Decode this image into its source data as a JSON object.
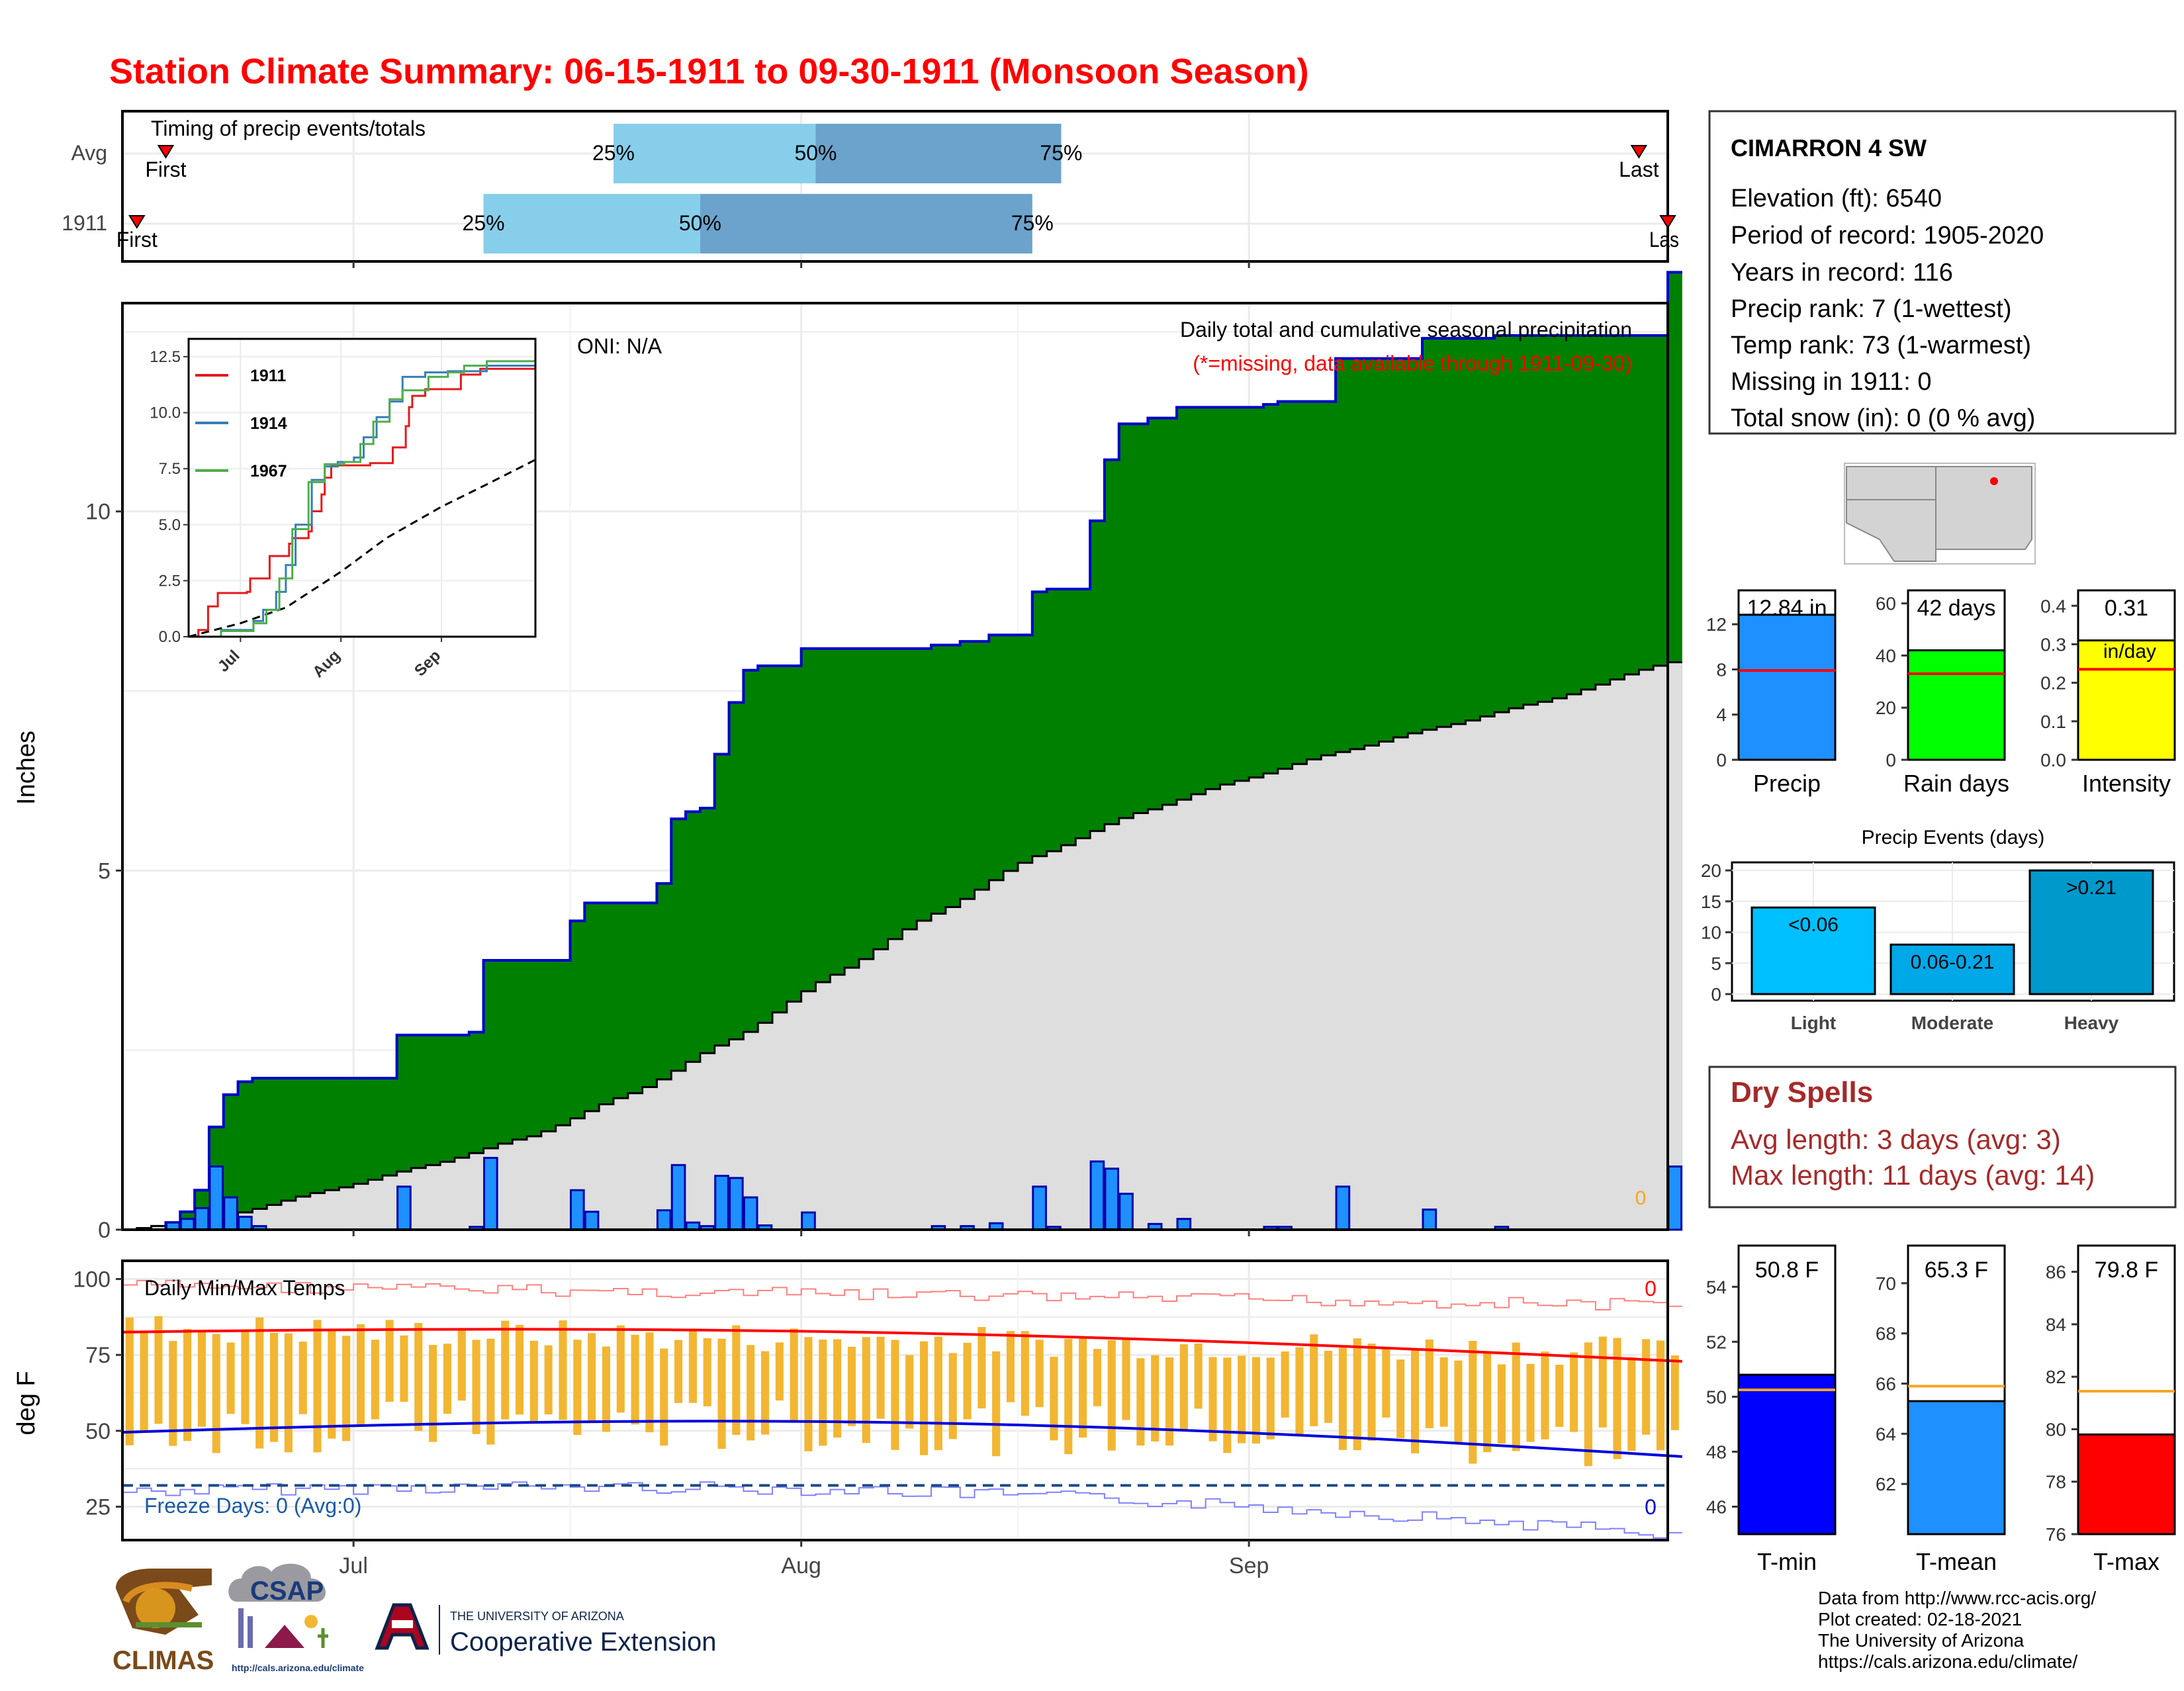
{
  "title": "Station Climate Summary: 06-15-1911 to 09-30-1911 (Monsoon Season)",
  "colors": {
    "title": "#ff0000",
    "green": "#008000",
    "blue": "#1e90ff",
    "gray": "#dedede",
    "navy": "#0000cc",
    "gold": "#f2b632",
    "brown": "#a52a2a"
  },
  "timing": {
    "label": "Timing of precip events/totals",
    "rows": [
      {
        "name": "Avg",
        "first_date": "1911-06-18",
        "p25": "1911-07-19",
        "p50": "1911-08-02",
        "p75": "1911-08-19",
        "last_date": "1911-09-28",
        "first_label": "First",
        "last_label": "Last",
        "p25_label": "25%",
        "p50_label": "50%",
        "p75_label": "75%"
      },
      {
        "name": "1911",
        "first_date": "1911-06-16",
        "p25": "1911-07-10",
        "p50": "1911-07-25",
        "p75": "1911-08-17",
        "last_date": "1911-09-30",
        "first_label": "First",
        "last_label": "Last",
        "p25_label": "25%",
        "p50_label": "50%",
        "p75_label": "75%"
      }
    ]
  },
  "station": {
    "name": "CIMARRON 4 SW",
    "lines": [
      "Elevation (ft): 6540",
      "Period of record: 1905-2020",
      "Years in record: 116",
      "Precip rank: 7 (1-wettest)",
      "Temp rank: 73 (1-warmest)",
      "Missing in 1911: 0",
      "Total snow (in): 0 (0 % avg)"
    ]
  },
  "main_chart": {
    "ylabel": "Inches",
    "oni": "ONI: N/A",
    "caption1": "Daily total and cumulative seasonal precipitation",
    "caption2": "(*=missing, data available through 1911-09-30)",
    "x_ticks": [
      "Jul",
      "Aug",
      "Sep"
    ],
    "y_ticks": [
      "0",
      "5",
      "10"
    ],
    "marker": "0"
  },
  "inset": {
    "legend": [
      "1911",
      "1914",
      "1967"
    ],
    "series_colors": [
      "#e41a1c",
      "#377eb8",
      "#4daf4a"
    ],
    "y_ticks": [
      "0.0",
      "2.5",
      "5.0",
      "7.5",
      "10.0",
      "12.5"
    ],
    "x_ticks": [
      "Jul",
      "Aug",
      "Sep"
    ]
  },
  "temp_chart": {
    "ylabel": "deg F",
    "label": "Daily Min/Max Temps",
    "freeze": "Freeze Days: 0 (Avg:0)",
    "count_max": "0",
    "count_min": "0",
    "y_ticks": [
      "25",
      "50",
      "75",
      "100"
    ],
    "x_ticks": [
      "Jul",
      "Aug",
      "Sep"
    ]
  },
  "summary_bars": [
    {
      "name": "Precip",
      "label": "12.84 in",
      "value": 12.84,
      "avg": 7.9,
      "ymax": 15,
      "ticks": [
        "0",
        "4",
        "8",
        "12"
      ],
      "color": "#1e90ff"
    },
    {
      "name": "Rain days",
      "label": "42 days",
      "value": 42,
      "avg": 33,
      "ymax": 65,
      "ticks": [
        "0",
        "20",
        "40",
        "60"
      ],
      "color": "#00ff00"
    },
    {
      "name": "Intensity",
      "label": "0.31",
      "sublabel": "in/day",
      "value": 0.31,
      "avg": 0.235,
      "ymax": 0.44,
      "ticks": [
        "0.0",
        "0.1",
        "0.2",
        "0.3",
        "0.4"
      ],
      "color": "#ffff00"
    }
  ],
  "events": {
    "title": "Precip Events (days)",
    "categories": [
      "Light",
      "Moderate",
      "Heavy"
    ],
    "labels": [
      "<0.06",
      "0.06-0.21",
      ">0.21"
    ],
    "values": [
      14,
      8,
      20
    ],
    "colors": [
      "#00bfff",
      "#00a8e8",
      "#0099cc"
    ],
    "ticks": [
      "0",
      "5",
      "10",
      "15",
      "20"
    ]
  },
  "dry_spells": {
    "title": "Dry Spells",
    "avg": "Avg length: 3 days (avg: 3)",
    "max": "Max length: 11 days (avg: 14)"
  },
  "temp_bars": [
    {
      "name": "T-min",
      "label": "50.8 F",
      "value": 50.8,
      "avg": 50.25,
      "range": [
        45,
        55.5
      ],
      "ticks": [
        "46",
        "48",
        "50",
        "52",
        "54"
      ],
      "color": "#0000ff"
    },
    {
      "name": "T-mean",
      "label": "65.3 F",
      "value": 65.3,
      "avg": 65.9,
      "range": [
        60,
        71.5
      ],
      "ticks": [
        "62",
        "64",
        "66",
        "68",
        "70"
      ],
      "color": "#1e90ff"
    },
    {
      "name": "T-max",
      "label": "79.8 F",
      "value": 79.8,
      "avg": 81.45,
      "range": [
        76,
        87
      ],
      "ticks": [
        "76",
        "78",
        "80",
        "82",
        "84",
        "86"
      ],
      "color": "#ff0000"
    }
  ],
  "footer": {
    "lines": [
      "Data from http://www.rcc-acis.org/",
      "Plot created: 02-18-2021",
      "The University of Arizona",
      "https://cals.arizona.edu/climate/"
    ],
    "climas": "CLIMAS",
    "csap": "CSAP",
    "csap_url": "http://cals.arizona.edu/climate",
    "ua_small": "THE UNIVERSITY OF ARIZONA",
    "ua_big": "Cooperative Extension"
  },
  "chart_data": {
    "type": "area",
    "title": "Station Climate Summary: 06-15-1911 to 09-30-1911 (Monsoon Season)",
    "ylabel": "Inches",
    "ylim": [
      0,
      12.9
    ],
    "x_range": [
      "1911-06-15",
      "1911-09-30"
    ],
    "daily_precip": [
      [
        "1911-06-18",
        0.1
      ],
      [
        "1911-06-19",
        0.15
      ],
      [
        "1911-06-20",
        0.3
      ],
      [
        "1911-06-21",
        0.88
      ],
      [
        "1911-06-22",
        0.45
      ],
      [
        "1911-06-23",
        0.18
      ],
      [
        "1911-06-24",
        0.05
      ],
      [
        "1911-07-04",
        0.6
      ],
      [
        "1911-07-09",
        0.04
      ],
      [
        "1911-07-10",
        1.0
      ],
      [
        "1911-07-16",
        0.55
      ],
      [
        "1911-07-17",
        0.25
      ],
      [
        "1911-07-22",
        0.27
      ],
      [
        "1911-07-23",
        0.9
      ],
      [
        "1911-07-24",
        0.1
      ],
      [
        "1911-07-25",
        0.05
      ],
      [
        "1911-07-26",
        0.75
      ],
      [
        "1911-07-27",
        0.72
      ],
      [
        "1911-07-28",
        0.45
      ],
      [
        "1911-07-29",
        0.06
      ],
      [
        "1911-08-01",
        0.24
      ],
      [
        "1911-08-10",
        0.05
      ],
      [
        "1911-08-12",
        0.05
      ],
      [
        "1911-08-14",
        0.09
      ],
      [
        "1911-08-17",
        0.6
      ],
      [
        "1911-08-18",
        0.04
      ],
      [
        "1911-08-21",
        0.95
      ],
      [
        "1911-08-22",
        0.85
      ],
      [
        "1911-08-23",
        0.5
      ],
      [
        "1911-08-25",
        0.08
      ],
      [
        "1911-08-27",
        0.15
      ],
      [
        "1911-09-02",
        0.04
      ],
      [
        "1911-09-03",
        0.04
      ],
      [
        "1911-09-07",
        0.6
      ],
      [
        "1911-09-13",
        0.28
      ],
      [
        "1911-09-18",
        0.04
      ],
      [
        "1911-09-30",
        0.88
      ]
    ],
    "avg_cumulative": [
      [
        "1911-06-15",
        0
      ],
      [
        "1911-06-22",
        0.2
      ],
      [
        "1911-06-29",
        0.55
      ],
      [
        "1911-07-06",
        0.9
      ],
      [
        "1911-07-13",
        1.3
      ],
      [
        "1911-07-20",
        1.9
      ],
      [
        "1911-07-27",
        2.65
      ],
      [
        "1911-08-03",
        3.55
      ],
      [
        "1911-08-10",
        4.4
      ],
      [
        "1911-08-17",
        5.2
      ],
      [
        "1911-08-24",
        5.8
      ],
      [
        "1911-08-31",
        6.25
      ],
      [
        "1911-09-07",
        6.65
      ],
      [
        "1911-09-14",
        7.0
      ],
      [
        "1911-09-21",
        7.35
      ],
      [
        "1911-09-30",
        7.9
      ]
    ],
    "inset_cumulative": [
      {
        "name": "1911",
        "values": [
          [
            "1911-06-15",
            0
          ],
          [
            "1911-06-18",
            0.3
          ],
          [
            "1911-06-21",
            1.35
          ],
          [
            "1911-06-24",
            1.95
          ],
          [
            "1911-07-03",
            2.0
          ],
          [
            "1911-07-04",
            2.6
          ],
          [
            "1911-07-10",
            3.6
          ],
          [
            "1911-07-16",
            4.15
          ],
          [
            "1911-07-17",
            4.4
          ],
          [
            "1911-07-22",
            4.7
          ],
          [
            "1911-07-23",
            5.6
          ],
          [
            "1911-07-26",
            6.35
          ],
          [
            "1911-07-27",
            7.1
          ],
          [
            "1911-07-29",
            7.65
          ],
          [
            "1911-08-10",
            7.75
          ],
          [
            "1911-08-17",
            8.45
          ],
          [
            "1911-08-21",
            9.4
          ],
          [
            "1911-08-22",
            10.25
          ],
          [
            "1911-08-23",
            10.75
          ],
          [
            "1911-08-27",
            11.05
          ],
          [
            "1911-09-07",
            11.7
          ],
          [
            "1911-09-13",
            11.96
          ],
          [
            "1911-09-29",
            11.96
          ],
          [
            "1911-09-30",
            12.84
          ]
        ]
      },
      {
        "name": "1914",
        "values": [
          [
            "1911-06-15",
            0
          ],
          [
            "1911-06-25",
            0.3
          ],
          [
            "1911-07-05",
            0.7
          ],
          [
            "1911-07-08",
            1.2
          ],
          [
            "1911-07-12",
            2.0
          ],
          [
            "1911-07-15",
            3.2
          ],
          [
            "1911-07-18",
            5.0
          ],
          [
            "1911-07-23",
            7.0
          ],
          [
            "1911-07-27",
            7.6
          ],
          [
            "1911-07-31",
            7.8
          ],
          [
            "1911-08-05",
            8.0
          ],
          [
            "1911-08-08",
            8.9
          ],
          [
            "1911-08-12",
            9.8
          ],
          [
            "1911-08-16",
            10.5
          ],
          [
            "1911-08-20",
            11.6
          ],
          [
            "1911-08-27",
            11.8
          ],
          [
            "1911-09-03",
            11.85
          ],
          [
            "1911-09-15",
            12.1
          ],
          [
            "1911-09-30",
            12.0
          ]
        ]
      },
      {
        "name": "1967",
        "values": [
          [
            "1911-06-15",
            0
          ],
          [
            "1911-06-25",
            0.25
          ],
          [
            "1911-07-05",
            0.6
          ],
          [
            "1911-07-09",
            1.2
          ],
          [
            "1911-07-13",
            2.6
          ],
          [
            "1911-07-17",
            4.8
          ],
          [
            "1911-07-22",
            6.9
          ],
          [
            "1911-07-27",
            7.7
          ],
          [
            "1911-08-02",
            7.8
          ],
          [
            "1911-08-07",
            8.6
          ],
          [
            "1911-08-11",
            9.6
          ],
          [
            "1911-08-16",
            10.6
          ],
          [
            "1911-08-20",
            11.0
          ],
          [
            "1911-08-28",
            11.6
          ],
          [
            "1911-09-03",
            11.8
          ],
          [
            "1911-09-08",
            12.1
          ],
          [
            "1911-09-15",
            12.3
          ],
          [
            "1911-09-30",
            12.7
          ]
        ]
      }
    ],
    "inset_avg": [
      [
        "1911-06-15",
        0
      ],
      [
        "1911-07-01",
        0.6
      ],
      [
        "1911-07-15",
        1.3
      ],
      [
        "1911-08-01",
        2.9
      ],
      [
        "1911-08-15",
        4.4
      ],
      [
        "1911-09-01",
        5.8
      ],
      [
        "1911-09-15",
        6.8
      ],
      [
        "1911-09-30",
        7.9
      ]
    ],
    "temps_ylim": [
      14,
      106
    ],
    "tmax_record_range": [
      88,
      100
    ],
    "tmin_record_range": [
      18,
      40
    ]
  }
}
